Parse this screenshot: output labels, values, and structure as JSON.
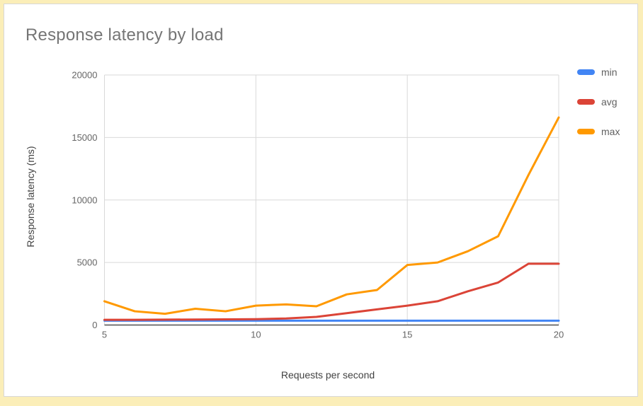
{
  "page": {
    "background": "#fbeeb8",
    "card_background": "#ffffff",
    "card_border_color": "#d8d8d8"
  },
  "chart_data": {
    "type": "line",
    "title": "Response latency by load",
    "xlabel": "Requests per second",
    "ylabel": "Response latency (ms)",
    "x": [
      5,
      6,
      7,
      8,
      9,
      10,
      11,
      12,
      13,
      14,
      15,
      16,
      17,
      18,
      19,
      20
    ],
    "series": [
      {
        "name": "min",
        "color": "#4285f4",
        "values": [
          350,
          350,
          350,
          350,
          350,
          350,
          350,
          350,
          350,
          350,
          350,
          350,
          350,
          350,
          350,
          350
        ]
      },
      {
        "name": "avg",
        "color": "#db4437",
        "values": [
          420,
          420,
          430,
          440,
          450,
          470,
          520,
          650,
          950,
          1250,
          1550,
          1900,
          2700,
          3400,
          4900,
          4900
        ]
      },
      {
        "name": "max",
        "color": "#ff9900",
        "values": [
          1900,
          1100,
          900,
          1300,
          1100,
          1550,
          1650,
          1500,
          2450,
          2800,
          4800,
          5000,
          5900,
          7100,
          12000,
          16600
        ]
      }
    ],
    "xlim": [
      5,
      20
    ],
    "ylim": [
      0,
      20000
    ],
    "x_ticks": [
      5,
      10,
      15,
      20
    ],
    "y_ticks": [
      0,
      5000,
      10000,
      15000,
      20000
    ],
    "grid": true,
    "legend_position": "right",
    "style": {
      "title_color": "#757575",
      "tick_label_color": "#666666",
      "axis_title_color": "#424242",
      "grid_color": "#d9d9d9",
      "baseline_color": "#333333",
      "line_width": 3
    }
  }
}
